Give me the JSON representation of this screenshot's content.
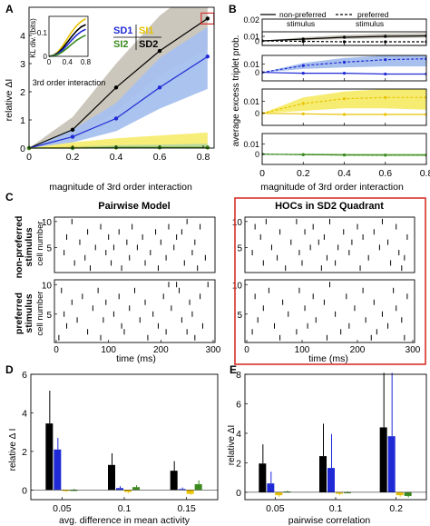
{
  "panel_letters": {
    "A": "A",
    "B": "B",
    "C": "C",
    "D": "D",
    "E": "E"
  },
  "colors": {
    "SD1": "#1f2ad6",
    "SI1": "#e8c200",
    "SI2": "#3a8a1e",
    "SD2": "#000000",
    "red_box": "#d8302a",
    "grey_band": "#c8c4b8",
    "blue_band": "#a7c0ee",
    "yellow_band": "#f7ec72"
  },
  "chart_data": [
    {
      "id": "A",
      "type": "line",
      "xlabel": "magnitude of 3rd order interaction",
      "ylabel": "relative ΔI",
      "xlim": [
        0,
        0.85
      ],
      "ylim": [
        0,
        5
      ],
      "xticks": [
        "0",
        "0.2",
        "0.4",
        "0.6",
        "0.8"
      ],
      "yticks": [
        "0",
        "1",
        "2",
        "3",
        "4"
      ],
      "x": [
        0,
        0.2,
        0.4,
        0.6,
        0.82
      ],
      "series": [
        {
          "name": "SD2",
          "color": "#000000",
          "values": [
            0,
            0.65,
            2.15,
            3.45,
            4.6
          ],
          "band_lo": [
            0,
            0.3,
            1.3,
            2.6,
            3.5
          ],
          "band_hi": [
            0,
            1.1,
            3.0,
            4.7,
            6.0
          ]
        },
        {
          "name": "SD1",
          "color": "#1f2ad6",
          "values": [
            0,
            0.4,
            1.05,
            2.15,
            3.25
          ],
          "band_lo": [
            0,
            0.2,
            0.6,
            1.4,
            2.1
          ],
          "band_hi": [
            0,
            0.65,
            1.6,
            3.2,
            4.3
          ]
        },
        {
          "name": "SI1",
          "color": "#e8c200",
          "values": [
            0,
            0.02,
            0.02,
            0.02,
            0.02
          ],
          "band_lo": [
            0,
            -0.15,
            -0.3,
            -0.38,
            -0.45
          ],
          "band_hi": [
            0,
            0.2,
            0.35,
            0.45,
            0.55
          ]
        },
        {
          "name": "SI2",
          "color": "#3a8a1e",
          "values": [
            0,
            0.0,
            0.02,
            0.02,
            0.02
          ],
          "band_lo": [
            0,
            -0.05,
            -0.1,
            -0.12,
            -0.15
          ],
          "band_hi": [
            0,
            0.05,
            0.1,
            0.12,
            0.15
          ]
        }
      ],
      "legend": [
        "SD1",
        "SI1",
        "SI2",
        "SD2"
      ],
      "inset": {
        "type": "line",
        "ylabel": "KL div. (bits)",
        "xlabel": "3rd order interaction",
        "xticks": [
          "0",
          "0.4",
          "0.8"
        ],
        "yticks": [
          "0",
          "0.1"
        ],
        "x": [
          0,
          0.1,
          0.2,
          0.3,
          0.4,
          0.5,
          0.6,
          0.7,
          0.8
        ],
        "series": [
          {
            "name": "SI1",
            "color": "#e8c200",
            "values": [
              0,
              0.005,
              0.02,
              0.045,
              0.075,
              0.105,
              0.13,
              0.148,
              0.16
            ]
          },
          {
            "name": "SD2",
            "color": "#000000",
            "values": [
              0,
              0.004,
              0.015,
              0.035,
              0.06,
              0.085,
              0.108,
              0.125,
              0.135
            ]
          },
          {
            "name": "SD1",
            "color": "#1f2ad6",
            "values": [
              0,
              0.003,
              0.012,
              0.028,
              0.048,
              0.07,
              0.09,
              0.105,
              0.115
            ]
          },
          {
            "name": "SI2",
            "color": "#3a8a1e",
            "values": [
              0,
              0.002,
              0.008,
              0.02,
              0.035,
              0.052,
              0.068,
              0.08,
              0.09
            ]
          }
        ]
      }
    },
    {
      "id": "B",
      "type": "line",
      "xlabel": "magnitude of 3rd order interaction",
      "ylabel": "average excess triplet prob.",
      "xticks": [
        "0",
        "0.2",
        "0.4",
        "0.6",
        "0.8"
      ],
      "legend": [
        {
          "label": "non-preferred\nstimulus",
          "style": "solid"
        },
        {
          "label": "preferred\nstimulus",
          "style": "dashed"
        }
      ],
      "x": [
        0,
        0.2,
        0.4,
        0.6,
        0.8
      ],
      "panels": [
        {
          "color": "#000000",
          "band": "#c8c4b8",
          "ylim": [
            -0.01,
            0.02
          ],
          "yticks": [
            "-0.01",
            "0",
            "0.01",
            "0.02"
          ],
          "solid": [
            0,
            0.004,
            0.008,
            0.01,
            0.011
          ],
          "dashed": [
            0,
            -0.001,
            -0.002,
            -0.002,
            -0.002
          ],
          "band_lo": [
            0,
            0.001,
            0.004,
            0.006,
            0.007
          ],
          "band_hi": [
            0,
            0.008,
            0.013,
            0.016,
            0.017
          ]
        },
        {
          "color": "#1f2ad6",
          "band": "#a7c0ee",
          "ylim": [
            -0.01,
            0.02
          ],
          "yticks": [
            "-0.01",
            "0",
            "0.01",
            "0.02"
          ],
          "solid": [
            0,
            -0.001,
            -0.001,
            -0.002,
            -0.002
          ],
          "dashed": [
            0,
            0.008,
            0.012,
            0.015,
            0.016
          ],
          "band_lo": [
            0,
            0.004,
            0.006,
            0.007,
            0.007
          ],
          "band_hi": [
            0,
            0.011,
            0.017,
            0.02,
            0.021
          ]
        },
        {
          "color": "#e8c200",
          "band": "#f7ec72",
          "ylim": [
            -0.01,
            0.02
          ],
          "yticks": [
            "-0.01",
            "0",
            "0.01",
            "0.02"
          ],
          "solid": [
            0,
            -0.0005,
            -0.001,
            -0.001,
            -0.001
          ],
          "dashed": [
            0,
            0.008,
            0.012,
            0.013,
            0.013
          ],
          "band_lo": [
            0,
            0.002,
            0.004,
            0.004,
            0.003
          ],
          "band_hi": [
            0,
            0.013,
            0.018,
            0.02,
            0.021
          ]
        },
        {
          "color": "#3a8a1e",
          "band": "#b7d9a0",
          "ylim": [
            -0.01,
            0.02
          ],
          "yticks": [
            "-0.01",
            "0",
            "0.01",
            "0.02"
          ],
          "solid": [
            0,
            -0.0005,
            -0.0008,
            -0.001,
            -0.001
          ],
          "dashed": [
            0,
            -0.0005,
            -0.0008,
            -0.001,
            -0.001
          ],
          "band_lo": [
            0,
            -0.001,
            -0.001,
            -0.0015,
            -0.0015
          ],
          "band_hi": [
            0,
            0.0005,
            0.0005,
            0.0005,
            0.0005
          ]
        }
      ]
    },
    {
      "id": "C",
      "type": "scatter",
      "title_left": "Pairwise Model",
      "title_right": "HOCs in SD2 Quadrant",
      "row_label_top": "non-preferred\nstimulus",
      "row_label_bottom": "preferred\nstimulus",
      "ylabel": "cell number",
      "xlabel": "time (ms)",
      "xticks": [
        "0",
        "100",
        "200",
        "300"
      ],
      "yticks": [
        "5",
        "10"
      ],
      "rasters": {
        "left_top": [
          [
            250,
            10
          ],
          [
            30,
            10
          ],
          [
            85,
            9
          ],
          [
            145,
            9
          ],
          [
            215,
            9
          ],
          [
            275,
            9
          ],
          [
            60,
            8
          ],
          [
            120,
            8
          ],
          [
            190,
            8
          ],
          [
            240,
            8
          ],
          [
            20,
            7
          ],
          [
            100,
            7
          ],
          [
            165,
            7
          ],
          [
            230,
            7
          ],
          [
            45,
            6
          ],
          [
            135,
            6
          ],
          [
            200,
            6
          ],
          [
            265,
            6
          ],
          [
            75,
            5
          ],
          [
            110,
            5
          ],
          [
            155,
            5
          ],
          [
            225,
            5
          ],
          [
            15,
            4
          ],
          [
            95,
            4
          ],
          [
            180,
            4
          ],
          [
            260,
            4
          ],
          [
            55,
            3
          ],
          [
            140,
            3
          ],
          [
            210,
            3
          ],
          [
            285,
            3
          ],
          [
            35,
            2
          ],
          [
            105,
            2
          ],
          [
            170,
            2
          ],
          [
            245,
            2
          ],
          [
            65,
            1
          ],
          [
            125,
            1
          ],
          [
            195,
            1
          ],
          [
            270,
            1
          ]
        ],
        "left_bottom": [
          [
            215,
            10
          ],
          [
            230,
            10
          ],
          [
            290,
            10
          ],
          [
            10,
            9
          ],
          [
            80,
            9
          ],
          [
            150,
            9
          ],
          [
            235,
            9
          ],
          [
            50,
            8
          ],
          [
            120,
            8
          ],
          [
            205,
            8
          ],
          [
            275,
            8
          ],
          [
            30,
            7
          ],
          [
            95,
            7
          ],
          [
            170,
            7
          ],
          [
            255,
            7
          ],
          [
            70,
            6
          ],
          [
            140,
            6
          ],
          [
            220,
            6
          ],
          [
            15,
            5
          ],
          [
            110,
            5
          ],
          [
            185,
            5
          ],
          [
            260,
            5
          ],
          [
            40,
            4
          ],
          [
            90,
            4
          ],
          [
            160,
            4
          ],
          [
            240,
            4
          ],
          [
            20,
            3
          ],
          [
            125,
            3
          ],
          [
            195,
            3
          ],
          [
            280,
            3
          ],
          [
            60,
            2
          ],
          [
            130,
            2
          ],
          [
            210,
            2
          ],
          [
            250,
            2
          ],
          [
            5,
            1
          ],
          [
            85,
            1
          ],
          [
            175,
            1
          ],
          [
            265,
            1
          ]
        ],
        "right_top": [
          [
            35,
            10
          ],
          [
            90,
            10
          ],
          [
            150,
            10
          ],
          [
            245,
            10
          ],
          [
            15,
            9
          ],
          [
            120,
            9
          ],
          [
            200,
            9
          ],
          [
            270,
            9
          ],
          [
            60,
            8
          ],
          [
            105,
            8
          ],
          [
            175,
            8
          ],
          [
            230,
            8
          ],
          [
            25,
            7
          ],
          [
            140,
            7
          ],
          [
            210,
            7
          ],
          [
            290,
            7
          ],
          [
            80,
            6
          ],
          [
            130,
            6
          ],
          [
            190,
            6
          ],
          [
            255,
            6
          ],
          [
            45,
            5
          ],
          [
            115,
            5
          ],
          [
            165,
            5
          ],
          [
            240,
            5
          ],
          [
            10,
            4
          ],
          [
            95,
            4
          ],
          [
            185,
            4
          ],
          [
            275,
            4
          ],
          [
            55,
            3
          ],
          [
            145,
            3
          ],
          [
            220,
            3
          ],
          [
            285,
            3
          ],
          [
            30,
            2
          ],
          [
            100,
            2
          ],
          [
            160,
            2
          ],
          [
            260,
            2
          ],
          [
            70,
            1
          ],
          [
            135,
            1
          ],
          [
            205,
            1
          ],
          [
            280,
            1
          ]
        ],
        "right_bottom": [
          [
            150,
            10
          ],
          [
            40,
            9
          ],
          [
            95,
            9
          ],
          [
            210,
            9
          ],
          [
            265,
            9
          ],
          [
            15,
            8
          ],
          [
            120,
            8
          ],
          [
            180,
            8
          ],
          [
            290,
            8
          ],
          [
            65,
            7
          ],
          [
            140,
            7
          ],
          [
            230,
            7
          ],
          [
            30,
            6
          ],
          [
            105,
            6
          ],
          [
            195,
            6
          ],
          [
            270,
            6
          ],
          [
            75,
            5
          ],
          [
            160,
            5
          ],
          [
            245,
            5
          ],
          [
            20,
            4
          ],
          [
            125,
            4
          ],
          [
            215,
            4
          ],
          [
            280,
            4
          ],
          [
            50,
            3
          ],
          [
            110,
            3
          ],
          [
            185,
            3
          ],
          [
            255,
            3
          ],
          [
            10,
            2
          ],
          [
            90,
            2
          ],
          [
            170,
            2
          ],
          [
            235,
            2
          ],
          [
            60,
            1
          ],
          [
            145,
            1
          ],
          [
            225,
            1
          ],
          [
            285,
            1
          ]
        ]
      }
    },
    {
      "id": "D",
      "type": "bar",
      "xlabel": "avg. difference in mean activity",
      "ylabel": "relative Δ I",
      "ylim": [
        -0.5,
        6
      ],
      "yticks": [
        "0",
        "2",
        "4",
        "6"
      ],
      "categories": [
        "0.05",
        "0.1",
        "0.15"
      ],
      "series": [
        {
          "name": "SD2",
          "color": "#000000",
          "values": [
            3.45,
            1.3,
            1.0
          ],
          "err": [
            1.7,
            0.6,
            0.5
          ]
        },
        {
          "name": "SD1",
          "color": "#1f2ad6",
          "values": [
            2.1,
            0.1,
            0.05
          ],
          "err": [
            0.6,
            0.1,
            0.08
          ]
        },
        {
          "name": "SI1",
          "color": "#e8c200",
          "values": [
            -0.05,
            -0.1,
            -0.2
          ],
          "err": [
            0.05,
            0.05,
            0.05
          ]
        },
        {
          "name": "SI2",
          "color": "#3a8a1e",
          "values": [
            0.0,
            0.15,
            0.3
          ],
          "err": [
            0.05,
            0.1,
            0.2
          ]
        }
      ]
    },
    {
      "id": "E",
      "type": "bar",
      "xlabel": "pairwise correlation",
      "ylabel": "relative ΔI",
      "ylim": [
        -0.5,
        8
      ],
      "yticks": [
        "0",
        "2",
        "4",
        "6",
        "8"
      ],
      "categories": [
        "0.05",
        "0.1",
        "0.2"
      ],
      "series": [
        {
          "name": "SD2",
          "color": "#000000",
          "values": [
            1.95,
            2.45,
            4.4
          ],
          "err": [
            1.3,
            2.2,
            3.7
          ]
        },
        {
          "name": "SD1",
          "color": "#1f2ad6",
          "values": [
            0.6,
            1.65,
            3.8
          ],
          "err": [
            0.8,
            2.3,
            4.3
          ]
        },
        {
          "name": "SI1",
          "color": "#e8c200",
          "values": [
            -0.2,
            -0.1,
            -0.2
          ],
          "err": [
            0.1,
            0.1,
            0.1
          ]
        },
        {
          "name": "SI2",
          "color": "#3a8a1e",
          "values": [
            0.05,
            0.0,
            -0.25
          ],
          "err": [
            0.05,
            0.05,
            0.1
          ]
        }
      ]
    }
  ]
}
